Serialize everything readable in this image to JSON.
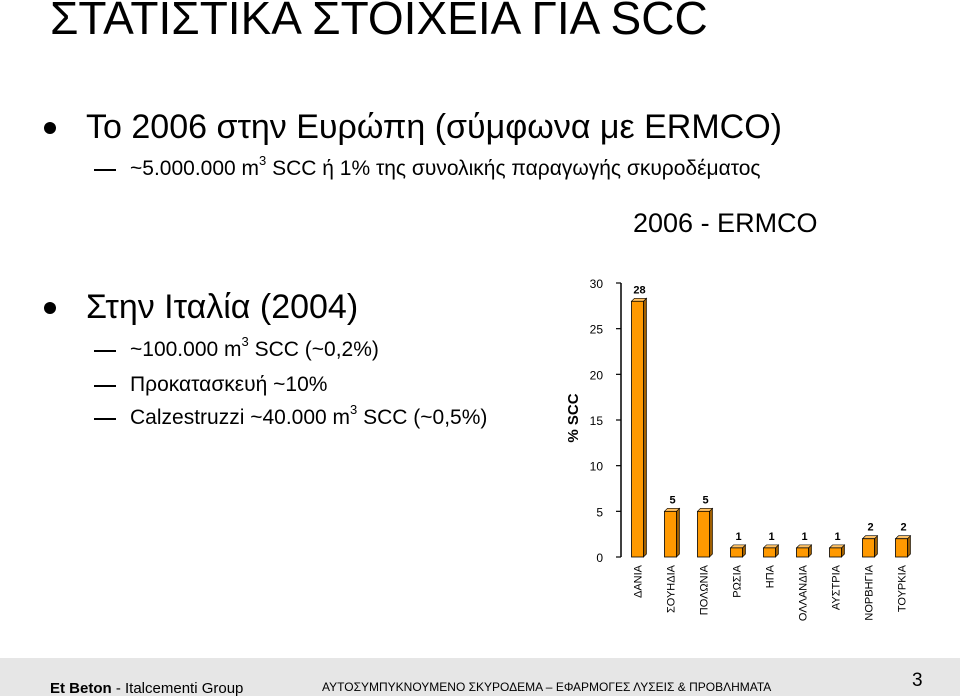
{
  "title": "ΣΤΑΤΙΣΤΙΚΑ ΣΤΟΙΧΕΙΑ ΓΙΑ SCC",
  "bullet1": {
    "text": "Το 2006 στην Ευρώπη (σύμφωνα με ERMCO)",
    "sub1": {
      "pre": "~5.000.000 m",
      "sup": "3",
      "post": " SCC ή 1% της συνολικής παραγωγής σκυροδέματος"
    }
  },
  "bullet2": {
    "text": "Στην Ιταλία (2004)",
    "sub1": {
      "pre": "~100.000 m",
      "sup": "3",
      "post": " SCC (~0,2%)"
    },
    "sub2": "Προκατασκευή ~10%",
    "sub3": {
      "pre": "Calzestruzzi ~40.000 m",
      "sup": "3",
      "post": " SCC (~0,5%)"
    }
  },
  "chart_data": {
    "type": "bar",
    "title": "2006 - ERMCO",
    "ylabel": "% SCC",
    "xlabel": "",
    "ylim": [
      0,
      30
    ],
    "yticks": [
      "0",
      "5",
      "10",
      "15",
      "20",
      "25",
      "30"
    ],
    "categories": [
      "ΔΑΝΙΑ",
      "ΣΟΥΗΔΙΑ",
      "ΠΟΛΩΝΙΑ",
      "ΡΩΣΙΑ",
      "ΗΠΑ",
      "ΟΛΛΑΝΔΙΑ",
      "ΑΥΣΤΡΙΑ",
      "ΝΟΡΒΗΓΙΑ",
      "ΤΟΥΡΚΙΑ"
    ],
    "values": [
      28,
      5,
      5,
      1,
      1,
      1,
      1,
      2,
      2
    ],
    "data_labels": [
      "28",
      "5",
      "5",
      "1",
      "1",
      "1",
      "1",
      "2",
      "2"
    ],
    "bar_color": "#ff9900",
    "grid": false
  },
  "footer": {
    "company_bold": "Et Beton",
    "company_rest": " - Italcementi Group",
    "subject": "ΑΥΤΟΣΥΜΠΥΚΝΟΥΜΕΝΟ ΣΚΥΡΟΔΕΜΑ – ΕΦΑΡΜΟΓΕΣ ΛΥΣΕΙΣ & ΠΡΟΒΛΗΜΑΤΑ",
    "page_number": "3"
  }
}
